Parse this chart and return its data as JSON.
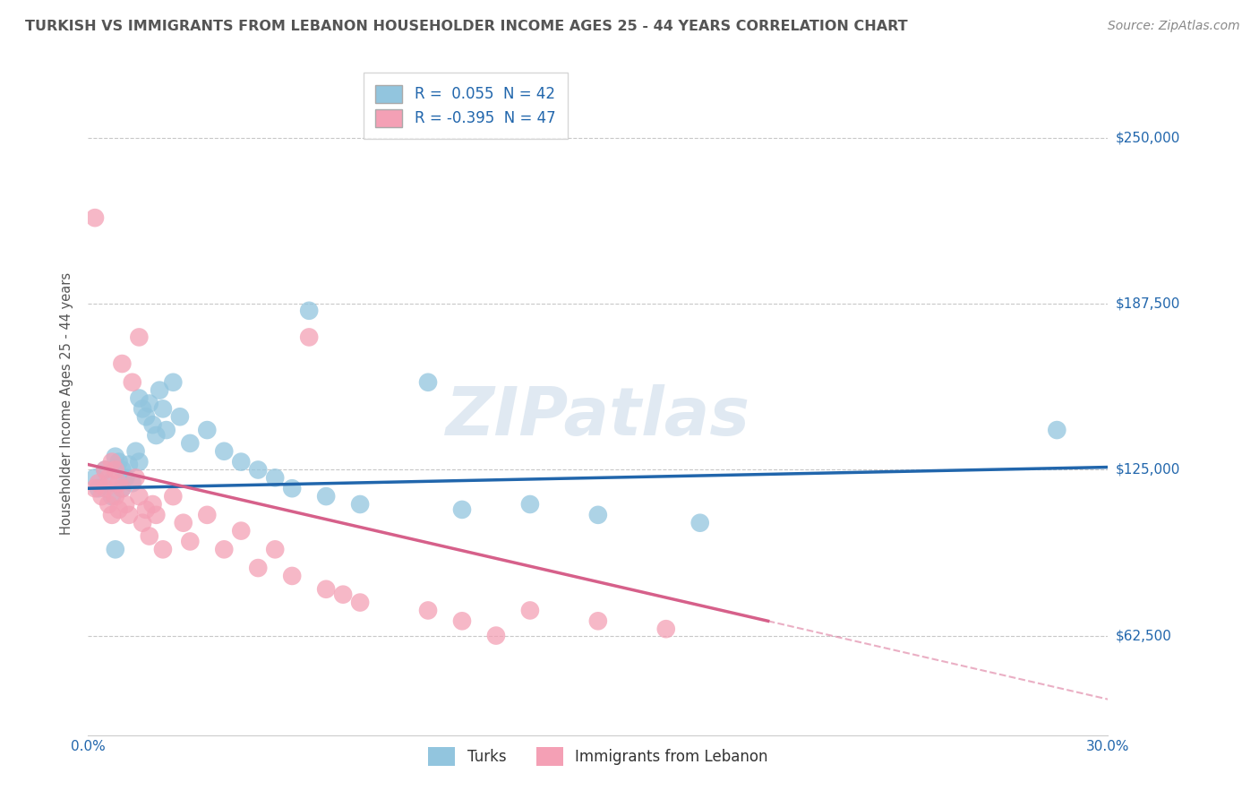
{
  "title": "TURKISH VS IMMIGRANTS FROM LEBANON HOUSEHOLDER INCOME AGES 25 - 44 YEARS CORRELATION CHART",
  "source": "Source: ZipAtlas.com",
  "ylabel": "Householder Income Ages 25 - 44 years",
  "xlim": [
    0.0,
    0.3
  ],
  "ylim": [
    25000,
    275000
  ],
  "yticks": [
    62500,
    125000,
    187500,
    250000
  ],
  "ytick_labels": [
    "$62,500",
    "$125,000",
    "$187,500",
    "$250,000"
  ],
  "xticks": [
    0.0,
    0.05,
    0.1,
    0.15,
    0.2,
    0.25,
    0.3
  ],
  "xtick_labels": [
    "0.0%",
    "",
    "",
    "",
    "",
    "",
    "30.0%"
  ],
  "watermark": "ZIPatlas",
  "blue_R": 0.055,
  "blue_N": 42,
  "pink_R": -0.395,
  "pink_N": 47,
  "blue_color": "#92c5de",
  "pink_color": "#f4a0b5",
  "blue_line_color": "#2166ac",
  "pink_line_color": "#d6608a",
  "blue_scatter": [
    [
      0.002,
      122000
    ],
    [
      0.003,
      118000
    ],
    [
      0.005,
      125000
    ],
    [
      0.006,
      120000
    ],
    [
      0.007,
      115000
    ],
    [
      0.008,
      130000
    ],
    [
      0.009,
      128000
    ],
    [
      0.01,
      125000
    ],
    [
      0.01,
      118000
    ],
    [
      0.011,
      122000
    ],
    [
      0.012,
      127000
    ],
    [
      0.013,
      120000
    ],
    [
      0.014,
      132000
    ],
    [
      0.015,
      128000
    ],
    [
      0.015,
      152000
    ],
    [
      0.016,
      148000
    ],
    [
      0.017,
      145000
    ],
    [
      0.018,
      150000
    ],
    [
      0.019,
      142000
    ],
    [
      0.02,
      138000
    ],
    [
      0.021,
      155000
    ],
    [
      0.022,
      148000
    ],
    [
      0.023,
      140000
    ],
    [
      0.025,
      158000
    ],
    [
      0.027,
      145000
    ],
    [
      0.03,
      135000
    ],
    [
      0.035,
      140000
    ],
    [
      0.04,
      132000
    ],
    [
      0.045,
      128000
    ],
    [
      0.05,
      125000
    ],
    [
      0.055,
      122000
    ],
    [
      0.06,
      118000
    ],
    [
      0.065,
      185000
    ],
    [
      0.07,
      115000
    ],
    [
      0.08,
      112000
    ],
    [
      0.1,
      158000
    ],
    [
      0.11,
      110000
    ],
    [
      0.13,
      112000
    ],
    [
      0.15,
      108000
    ],
    [
      0.18,
      105000
    ],
    [
      0.285,
      140000
    ],
    [
      0.008,
      95000
    ]
  ],
  "pink_scatter": [
    [
      0.002,
      118000
    ],
    [
      0.003,
      120000
    ],
    [
      0.004,
      115000
    ],
    [
      0.005,
      125000
    ],
    [
      0.005,
      118000
    ],
    [
      0.006,
      122000
    ],
    [
      0.006,
      112000
    ],
    [
      0.007,
      128000
    ],
    [
      0.007,
      108000
    ],
    [
      0.008,
      125000
    ],
    [
      0.008,
      115000
    ],
    [
      0.009,
      120000
    ],
    [
      0.009,
      110000
    ],
    [
      0.01,
      165000
    ],
    [
      0.01,
      118000
    ],
    [
      0.011,
      112000
    ],
    [
      0.012,
      108000
    ],
    [
      0.013,
      158000
    ],
    [
      0.014,
      122000
    ],
    [
      0.015,
      175000
    ],
    [
      0.015,
      115000
    ],
    [
      0.016,
      105000
    ],
    [
      0.017,
      110000
    ],
    [
      0.018,
      100000
    ],
    [
      0.019,
      112000
    ],
    [
      0.02,
      108000
    ],
    [
      0.022,
      95000
    ],
    [
      0.025,
      115000
    ],
    [
      0.028,
      105000
    ],
    [
      0.03,
      98000
    ],
    [
      0.035,
      108000
    ],
    [
      0.04,
      95000
    ],
    [
      0.045,
      102000
    ],
    [
      0.05,
      88000
    ],
    [
      0.055,
      95000
    ],
    [
      0.06,
      85000
    ],
    [
      0.065,
      175000
    ],
    [
      0.07,
      80000
    ],
    [
      0.075,
      78000
    ],
    [
      0.08,
      75000
    ],
    [
      0.1,
      72000
    ],
    [
      0.11,
      68000
    ],
    [
      0.13,
      72000
    ],
    [
      0.15,
      68000
    ],
    [
      0.17,
      65000
    ],
    [
      0.002,
      220000
    ],
    [
      0.12,
      62500
    ]
  ],
  "title_color": "#555555",
  "axis_color": "#555555",
  "grid_color": "#c8c8c8",
  "label_color": "#2166ac",
  "background_color": "#ffffff"
}
